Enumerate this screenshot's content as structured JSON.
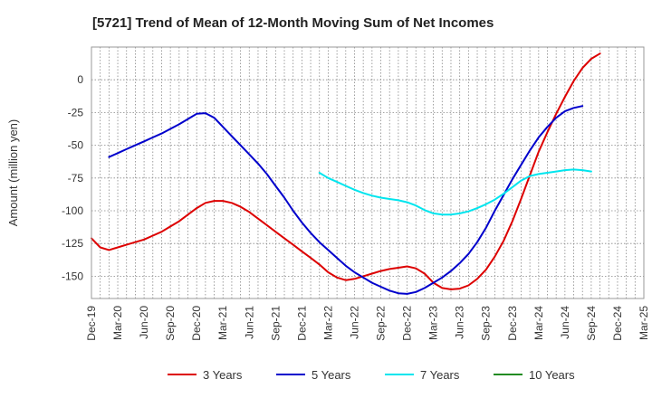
{
  "chart_data": {
    "type": "line",
    "title": "[5721]  Trend of Mean of 12-Month Moving Sum of Net Incomes",
    "ylabel": "Amount (million yen)",
    "xlabel": "",
    "ylim": [
      -167,
      25
    ],
    "yticks": [
      0,
      -25,
      -50,
      -75,
      -100,
      -125,
      -150
    ],
    "ytick_labels": [
      "0",
      "-25",
      "-50",
      "-75",
      "-100",
      "-125",
      "-150"
    ],
    "xlim": [
      "2019-12",
      "2025-03"
    ],
    "x_tick_labels": [
      "Dec-19",
      "Mar-20",
      "Jun-20",
      "Sep-20",
      "Dec-20",
      "Mar-21",
      "Jun-21",
      "Sep-21",
      "Dec-21",
      "Mar-22",
      "Jun-22",
      "Sep-22",
      "Dec-22",
      "Mar-23",
      "Jun-23",
      "Sep-23",
      "Dec-23",
      "Mar-24",
      "Jun-24",
      "Sep-24",
      "Dec-24",
      "Mar-25"
    ],
    "grid": true,
    "legend_position": "bottom",
    "series": [
      {
        "name": "3 Years",
        "color": "#dd0000",
        "points": [
          [
            "2019-12",
            -121
          ],
          [
            "2020-01",
            -128
          ],
          [
            "2020-02",
            -130
          ],
          [
            "2020-03",
            -128
          ],
          [
            "2020-04",
            -126
          ],
          [
            "2020-05",
            -124
          ],
          [
            "2020-06",
            -122
          ],
          [
            "2020-07",
            -119
          ],
          [
            "2020-08",
            -116
          ],
          [
            "2020-09",
            -112
          ],
          [
            "2020-10",
            -108
          ],
          [
            "2020-11",
            -103
          ],
          [
            "2020-12",
            -98
          ],
          [
            "2021-01",
            -94
          ],
          [
            "2021-02",
            -92.5
          ],
          [
            "2021-03",
            -92.5
          ],
          [
            "2021-04",
            -94
          ],
          [
            "2021-05",
            -97
          ],
          [
            "2021-06",
            -101
          ],
          [
            "2021-07",
            -106
          ],
          [
            "2021-08",
            -111
          ],
          [
            "2021-09",
            -116
          ],
          [
            "2021-10",
            -121
          ],
          [
            "2021-11",
            -126
          ],
          [
            "2021-12",
            -131
          ],
          [
            "2022-01",
            -136
          ],
          [
            "2022-02",
            -141
          ],
          [
            "2022-03",
            -147
          ],
          [
            "2022-04",
            -151
          ],
          [
            "2022-05",
            -153
          ],
          [
            "2022-06",
            -152
          ],
          [
            "2022-07",
            -150
          ],
          [
            "2022-08",
            -148
          ],
          [
            "2022-09",
            -146
          ],
          [
            "2022-10",
            -144.5
          ],
          [
            "2022-11",
            -143.5
          ],
          [
            "2022-12",
            -142.5
          ],
          [
            "2023-01",
            -144
          ],
          [
            "2023-02",
            -148
          ],
          [
            "2023-03",
            -155
          ],
          [
            "2023-04",
            -159
          ],
          [
            "2023-05",
            -160
          ],
          [
            "2023-06",
            -159.5
          ],
          [
            "2023-07",
            -157
          ],
          [
            "2023-08",
            -152
          ],
          [
            "2023-09",
            -145
          ],
          [
            "2023-10",
            -135
          ],
          [
            "2023-11",
            -123
          ],
          [
            "2023-12",
            -108
          ],
          [
            "2024-01",
            -91
          ],
          [
            "2024-02",
            -73
          ],
          [
            "2024-03",
            -55
          ],
          [
            "2024-04",
            -40
          ],
          [
            "2024-05",
            -26
          ],
          [
            "2024-06",
            -13
          ],
          [
            "2024-07",
            -1
          ],
          [
            "2024-08",
            9
          ],
          [
            "2024-09",
            16
          ],
          [
            "2024-10",
            20
          ]
        ]
      },
      {
        "name": "5 Years",
        "color": "#0000cc",
        "points": [
          [
            "2020-02",
            -59
          ],
          [
            "2020-03",
            -56
          ],
          [
            "2020-04",
            -53
          ],
          [
            "2020-05",
            -50
          ],
          [
            "2020-06",
            -47
          ],
          [
            "2020-07",
            -44
          ],
          [
            "2020-08",
            -41
          ],
          [
            "2020-09",
            -37.5
          ],
          [
            "2020-10",
            -34
          ],
          [
            "2020-11",
            -30
          ],
          [
            "2020-12",
            -26
          ],
          [
            "2021-01",
            -25.5
          ],
          [
            "2021-02",
            -29
          ],
          [
            "2021-03",
            -36
          ],
          [
            "2021-04",
            -43
          ],
          [
            "2021-05",
            -50
          ],
          [
            "2021-06",
            -57
          ],
          [
            "2021-07",
            -64
          ],
          [
            "2021-08",
            -72
          ],
          [
            "2021-09",
            -81
          ],
          [
            "2021-10",
            -90
          ],
          [
            "2021-11",
            -100
          ],
          [
            "2021-12",
            -109
          ],
          [
            "2022-01",
            -117
          ],
          [
            "2022-02",
            -124
          ],
          [
            "2022-03",
            -130
          ],
          [
            "2022-04",
            -136
          ],
          [
            "2022-05",
            -142
          ],
          [
            "2022-06",
            -147
          ],
          [
            "2022-07",
            -151
          ],
          [
            "2022-08",
            -155
          ],
          [
            "2022-09",
            -158
          ],
          [
            "2022-10",
            -161
          ],
          [
            "2022-11",
            -163
          ],
          [
            "2022-12",
            -163.5
          ],
          [
            "2023-01",
            -162
          ],
          [
            "2023-02",
            -159
          ],
          [
            "2023-03",
            -155
          ],
          [
            "2023-04",
            -151
          ],
          [
            "2023-05",
            -146
          ],
          [
            "2023-06",
            -140
          ],
          [
            "2023-07",
            -133
          ],
          [
            "2023-08",
            -124
          ],
          [
            "2023-09",
            -113
          ],
          [
            "2023-10",
            -100
          ],
          [
            "2023-11",
            -88
          ],
          [
            "2023-12",
            -76
          ],
          [
            "2024-01",
            -65
          ],
          [
            "2024-02",
            -54
          ],
          [
            "2024-03",
            -44
          ],
          [
            "2024-04",
            -36
          ],
          [
            "2024-05",
            -29
          ],
          [
            "2024-06",
            -24
          ],
          [
            "2024-07",
            -21.5
          ],
          [
            "2024-08",
            -20
          ]
        ]
      },
      {
        "name": "7 Years",
        "color": "#00e5ee",
        "points": [
          [
            "2022-02",
            -71
          ],
          [
            "2022-03",
            -75
          ],
          [
            "2022-04",
            -78
          ],
          [
            "2022-05",
            -81
          ],
          [
            "2022-06",
            -84
          ],
          [
            "2022-07",
            -86.5
          ],
          [
            "2022-08",
            -88.5
          ],
          [
            "2022-09",
            -90
          ],
          [
            "2022-10",
            -91
          ],
          [
            "2022-11",
            -92
          ],
          [
            "2022-12",
            -93.5
          ],
          [
            "2023-01",
            -96
          ],
          [
            "2023-02",
            -99.5
          ],
          [
            "2023-03",
            -102
          ],
          [
            "2023-04",
            -103
          ],
          [
            "2023-05",
            -103
          ],
          [
            "2023-06",
            -102
          ],
          [
            "2023-07",
            -100.5
          ],
          [
            "2023-08",
            -98
          ],
          [
            "2023-09",
            -95
          ],
          [
            "2023-10",
            -91.5
          ],
          [
            "2023-11",
            -87
          ],
          [
            "2023-12",
            -82
          ],
          [
            "2024-01",
            -77
          ],
          [
            "2024-02",
            -73.5
          ],
          [
            "2024-03",
            -72
          ],
          [
            "2024-04",
            -71
          ],
          [
            "2024-05",
            -70
          ],
          [
            "2024-06",
            -69
          ],
          [
            "2024-07",
            -68.5
          ],
          [
            "2024-08",
            -69
          ],
          [
            "2024-09",
            -70
          ]
        ]
      },
      {
        "name": "10 Years",
        "color": "#228b22",
        "points": []
      }
    ]
  }
}
